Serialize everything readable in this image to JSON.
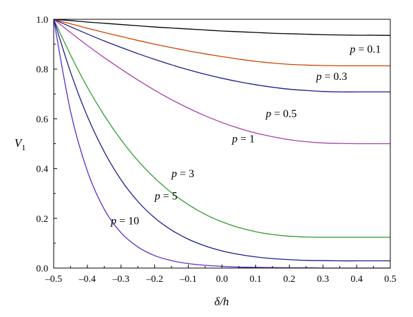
{
  "chart_data": {
    "type": "line",
    "title": "",
    "xlabel": "δ/h",
    "ylabel": "V",
    "ylabel_subscript": "1",
    "xlim": [
      -0.5,
      0.5
    ],
    "ylim": [
      0.0,
      1.0
    ],
    "xticks": [
      -0.5,
      -0.4,
      -0.3,
      -0.2,
      -0.1,
      0.0,
      0.1,
      0.2,
      0.3,
      0.4,
      0.5
    ],
    "xtick_labels": [
      "–0.5",
      "–0.4",
      "–0.3",
      "–0.2",
      "–0.1",
      "0.0",
      "0.1",
      "0.2",
      "0.3",
      "0.4",
      "0.5"
    ],
    "yticks": [
      0.0,
      0.2,
      0.4,
      0.6,
      0.8,
      1.0
    ],
    "ytick_labels": [
      "0.0",
      "0.2",
      "0.4",
      "0.6",
      "0.8",
      "1.0"
    ],
    "grid": false,
    "legend": "none",
    "x": [
      -0.5,
      -0.45,
      -0.4,
      -0.35,
      -0.3,
      -0.25,
      -0.2,
      -0.15,
      -0.1,
      -0.05,
      0.0,
      0.05,
      0.1,
      0.15,
      0.2,
      0.25,
      0.3,
      0.35,
      0.4,
      0.45,
      0.5
    ],
    "series": [
      {
        "name": "p = 0.1",
        "color": "#000000",
        "label_at": [
          0.38,
          0.88
        ],
        "values": [
          1.0,
          0.995,
          0.989,
          0.984,
          0.979,
          0.974,
          0.969,
          0.965,
          0.961,
          0.957,
          0.953,
          0.95,
          0.947,
          0.944,
          0.942,
          0.94,
          0.938,
          0.937,
          0.936,
          0.936,
          0.935
        ]
      },
      {
        "name": "p = 0.3",
        "color": "#cc4400",
        "label_at": [
          0.28,
          0.77
        ],
        "values": [
          1.0,
          0.982,
          0.964,
          0.947,
          0.931,
          0.915,
          0.9,
          0.886,
          0.873,
          0.861,
          0.85,
          0.84,
          0.831,
          0.824,
          0.819,
          0.816,
          0.814,
          0.813,
          0.813,
          0.813,
          0.813
        ]
      },
      {
        "name": "p = 0.5",
        "color": "#1a1a8c",
        "label_at": [
          0.13,
          0.62
        ],
        "values": [
          1.0,
          0.97,
          0.941,
          0.913,
          0.887,
          0.862,
          0.839,
          0.817,
          0.797,
          0.779,
          0.763,
          0.749,
          0.737,
          0.727,
          0.719,
          0.714,
          0.71,
          0.708,
          0.708,
          0.708,
          0.708
        ]
      },
      {
        "name": "p = 1",
        "color": "#a83ca8",
        "label_at": [
          0.03,
          0.52
        ],
        "values": [
          1.0,
          0.947,
          0.895,
          0.846,
          0.8,
          0.756,
          0.715,
          0.677,
          0.643,
          0.612,
          0.585,
          0.562,
          0.543,
          0.528,
          0.516,
          0.508,
          0.503,
          0.501,
          0.5,
          0.5,
          0.5
        ]
      },
      {
        "name": "p = 3",
        "color": "#2e9a2e",
        "label_at": [
          -0.15,
          0.38
        ],
        "values": [
          1.0,
          0.857,
          0.727,
          0.614,
          0.516,
          0.432,
          0.362,
          0.303,
          0.255,
          0.216,
          0.186,
          0.163,
          0.146,
          0.135,
          0.128,
          0.125,
          0.124,
          0.124,
          0.124,
          0.124,
          0.124
        ]
      },
      {
        "name": "p = 5",
        "color": "#1a1a8c",
        "label_at": [
          -0.2,
          0.29
        ],
        "values": [
          1.0,
          0.788,
          0.61,
          0.468,
          0.355,
          0.268,
          0.202,
          0.153,
          0.116,
          0.089,
          0.069,
          0.055,
          0.045,
          0.038,
          0.034,
          0.031,
          0.03,
          0.029,
          0.029,
          0.029,
          0.029
        ]
      },
      {
        "name": "p = 10",
        "color": "#5a2cc8",
        "label_at": [
          -0.33,
          0.19
        ],
        "values": [
          1.0,
          0.63,
          0.39,
          0.237,
          0.142,
          0.085,
          0.05,
          0.03,
          0.018,
          0.011,
          0.007,
          0.004,
          0.003,
          0.002,
          0.001,
          0.001,
          0.0,
          0.0,
          0.0,
          0.0,
          0.0
        ]
      }
    ]
  }
}
